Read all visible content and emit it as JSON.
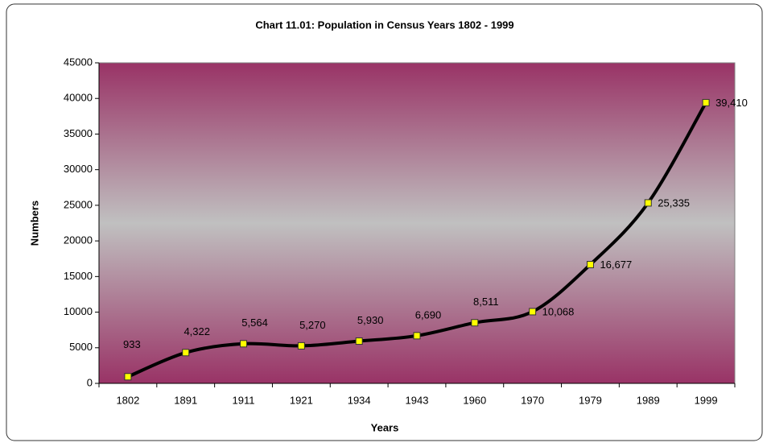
{
  "chart_data": {
    "type": "line",
    "title": "Chart 11.01: Population in Census Years 1802 - 1999",
    "x_label": "Years",
    "y_label": "Numbers",
    "categories": [
      "1802",
      "1891",
      "1911",
      "1921",
      "1934",
      "1943",
      "1960",
      "1970",
      "1979",
      "1989",
      "1999"
    ],
    "series": [
      {
        "name": "Population",
        "color": "#000000",
        "marker_color": "#ffff00",
        "values": [
          933,
          4322,
          5564,
          5270,
          5930,
          6690,
          8511,
          10068,
          16677,
          25335,
          39410
        ],
        "value_labels": [
          "933",
          "4,322",
          "5,564",
          "5,270",
          "5,930",
          "6,690",
          "8,511",
          "10,068",
          "16,677",
          "25,335",
          "39,410"
        ]
      }
    ],
    "ylim": [
      0,
      45000
    ],
    "yticks": [
      0,
      5000,
      10000,
      15000,
      20000,
      25000,
      30000,
      35000,
      40000,
      45000
    ]
  }
}
